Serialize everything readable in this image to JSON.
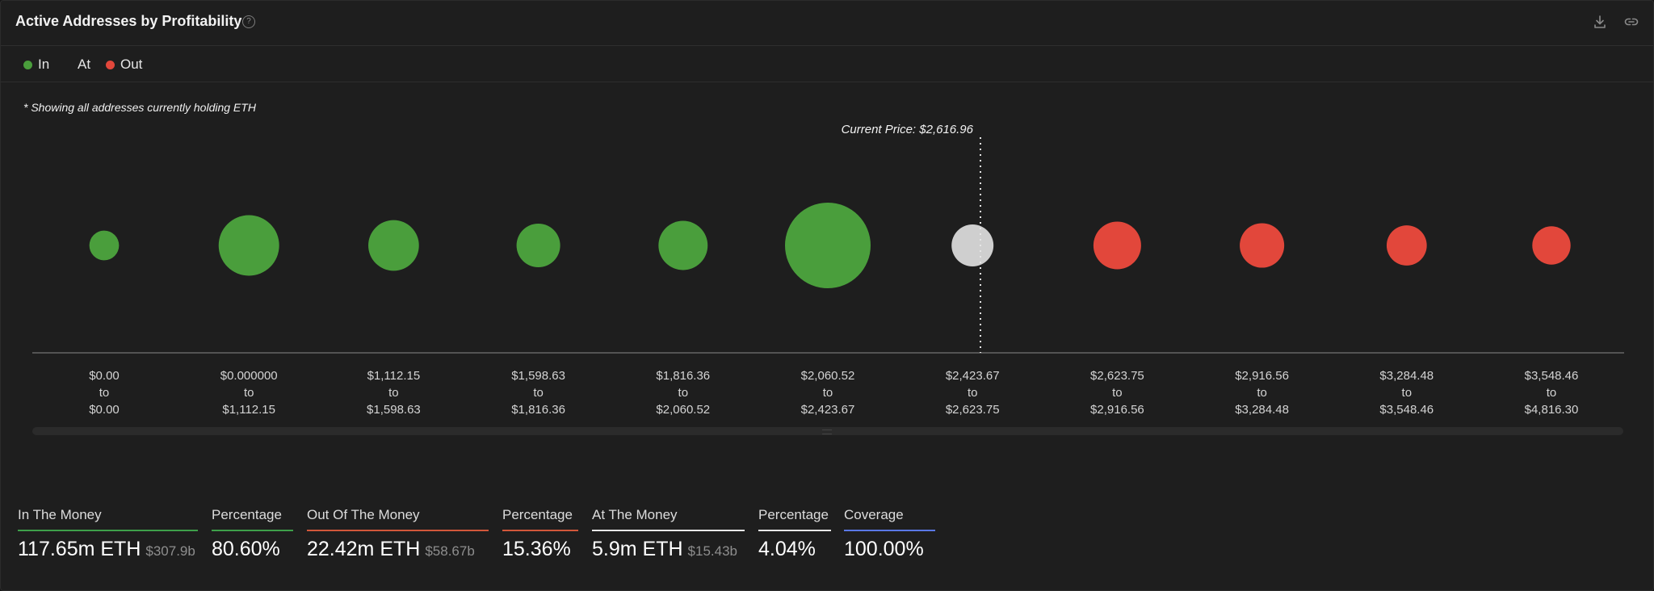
{
  "header": {
    "title": "Active Addresses by Profitability",
    "help_icon": "question-circle-icon",
    "actions": [
      "download-icon",
      "link-icon"
    ]
  },
  "legend": [
    {
      "label": "In",
      "color": "#4a9e3c"
    },
    {
      "label": "At",
      "color": null
    },
    {
      "label": "Out",
      "color": "#e2473b"
    }
  ],
  "note": "* Showing all addresses currently holding ETH",
  "chart_data": {
    "type": "scatter",
    "title": "Active Addresses by Profitability",
    "current_price_label": "Current Price: $2,616.96",
    "current_price": 2616.96,
    "colors": {
      "in": "#4a9e3c",
      "at": "#cfcfcf",
      "out": "#e2473b"
    },
    "buckets": [
      {
        "from": "$0.00",
        "to": "$0.00",
        "status": "in",
        "relative_size": 0.12
      },
      {
        "from": "$0.000000",
        "to": "$1,112.15",
        "status": "in",
        "relative_size": 0.5
      },
      {
        "from": "$1,112.15",
        "to": "$1,598.63",
        "status": "in",
        "relative_size": 0.35
      },
      {
        "from": "$1,598.63",
        "to": "$1,816.36",
        "status": "in",
        "relative_size": 0.26
      },
      {
        "from": "$1,816.36",
        "to": "$2,060.52",
        "status": "in",
        "relative_size": 0.33
      },
      {
        "from": "$2,060.52",
        "to": "$2,423.67",
        "status": "in",
        "relative_size": 1.0
      },
      {
        "from": "$2,423.67",
        "to": "$2,623.75",
        "status": "at",
        "relative_size": 0.24
      },
      {
        "from": "$2,623.75",
        "to": "$2,916.56",
        "status": "out",
        "relative_size": 0.31
      },
      {
        "from": "$2,916.56",
        "to": "$3,284.48",
        "status": "out",
        "relative_size": 0.27
      },
      {
        "from": "$3,284.48",
        "to": "$3,548.46",
        "status": "out",
        "relative_size": 0.22
      },
      {
        "from": "$3,548.46",
        "to": "$4,816.30",
        "status": "out",
        "relative_size": 0.2
      }
    ]
  },
  "stats": [
    {
      "label": "In The Money",
      "value": "117.65m ETH",
      "sub": "$307.9b",
      "color": "#3ea04a"
    },
    {
      "label": "Percentage",
      "value": "80.60%",
      "sub": "",
      "color": "#3ea04a"
    },
    {
      "label": "Out Of The Money",
      "value": "22.42m ETH",
      "sub": "$58.67b",
      "color": "#d2573a"
    },
    {
      "label": "Percentage",
      "value": "15.36%",
      "sub": "",
      "color": "#d2573a"
    },
    {
      "label": "At The Money",
      "value": "5.9m ETH",
      "sub": "$15.43b",
      "color": "#e8e8e8"
    },
    {
      "label": "Percentage",
      "value": "4.04%",
      "sub": "",
      "color": "#e8e8e8"
    },
    {
      "label": "Coverage",
      "value": "100.00%",
      "sub": "",
      "color": "#5a78e6"
    }
  ]
}
